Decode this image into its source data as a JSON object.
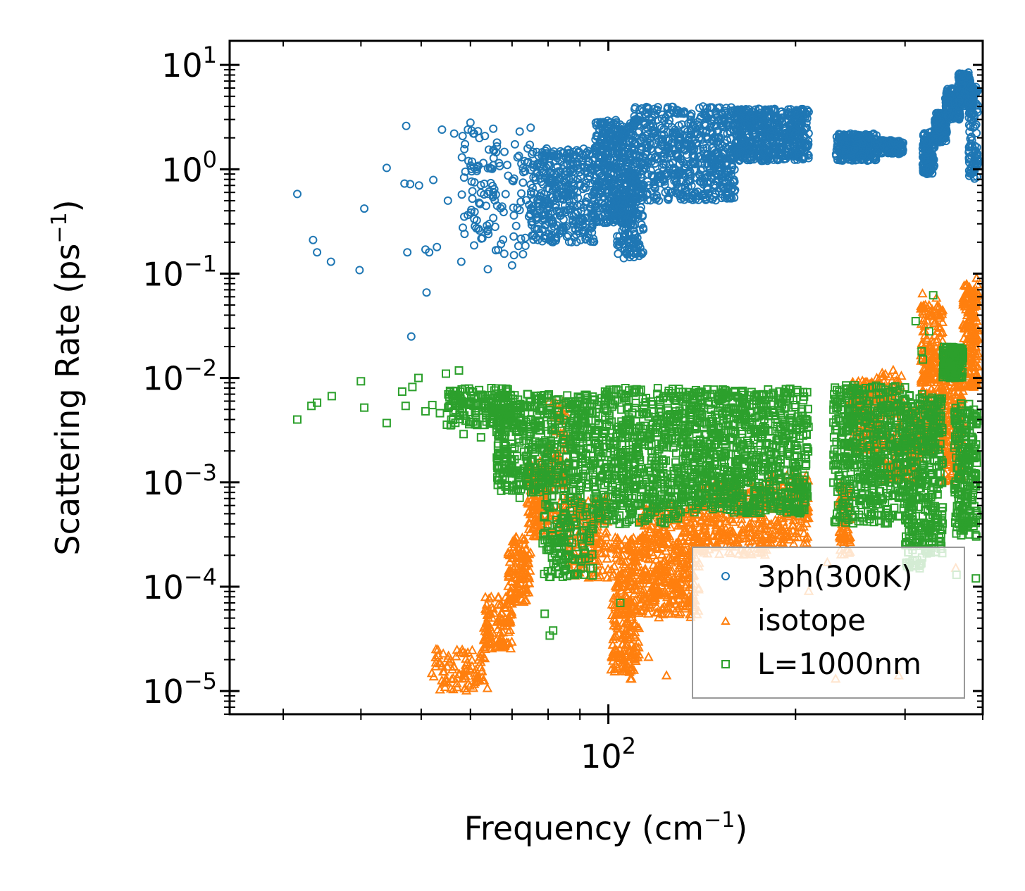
{
  "chart_data": {
    "type": "scatter",
    "title": "",
    "xlabel": "Frequency (cm",
    "xlabel_sup": "−1",
    "xlabel_end": ")",
    "ylabel": "Scattering Rate (ps",
    "ylabel_sup": "−1",
    "ylabel_end": ")",
    "xscale": "log",
    "yscale": "log",
    "xlim": [
      24.6,
      400
    ],
    "ylim": [
      6e-06,
      17
    ],
    "xticks": [
      {
        "value": 100,
        "base": "10",
        "exp": "2"
      }
    ],
    "yticks": [
      {
        "value": 1e-05,
        "base": "10",
        "exp": "−5"
      },
      {
        "value": 0.0001,
        "base": "10",
        "exp": "−4"
      },
      {
        "value": 0.001,
        "base": "10",
        "exp": "−3"
      },
      {
        "value": 0.01,
        "base": "10",
        "exp": "−2"
      },
      {
        "value": 0.1,
        "base": "10",
        "exp": "−1"
      },
      {
        "value": 1,
        "base": "10",
        "exp": "0"
      },
      {
        "value": 10,
        "base": "10",
        "exp": "1"
      }
    ],
    "legend_position": "lower-right",
    "series": [
      {
        "name": "3ph(300K)",
        "color": "#1f77b4",
        "marker": "circle",
        "points": [
          [
            31.6,
            0.58
          ],
          [
            33.5,
            0.21
          ],
          [
            34.0,
            0.16
          ],
          [
            35.8,
            0.13
          ],
          [
            39.8,
            0.108
          ],
          [
            40.5,
            0.42
          ],
          [
            44.0,
            1.03
          ],
          [
            47.0,
            0.73
          ],
          [
            47.3,
            2.6
          ],
          [
            47.5,
            0.16
          ],
          [
            48.0,
            0.72
          ],
          [
            48.2,
            0.025
          ],
          [
            49.6,
            0.7
          ],
          [
            50.8,
            0.17
          ],
          [
            51.0,
            0.066
          ],
          [
            51.5,
            0.16
          ],
          [
            52.3,
            0.79
          ],
          [
            53.0,
            0.18
          ],
          [
            54.0,
            2.4
          ],
          [
            55.2,
            0.5
          ],
          [
            56.5,
            2.2
          ],
          [
            58.0,
            0.13
          ],
          [
            60.0,
            2.8
          ],
          [
            62.0,
            0.47
          ],
          [
            64.0,
            0.11
          ],
          [
            65.3,
            1.53
          ],
          [
            68.0,
            0.155
          ],
          [
            70.0,
            0.12
          ],
          [
            72.0,
            2.3
          ],
          [
            75.0,
            2.5
          ]
        ],
        "dense_regions": [
          {
            "x": [
              58,
              75
            ],
            "y": [
              0.15,
              2.5
            ],
            "n": 130
          },
          {
            "x": [
              75,
              95
            ],
            "y": [
              0.2,
              1.6
            ],
            "n": 380
          },
          {
            "x": [
              95,
              110
            ],
            "y": [
              0.3,
              3.0
            ],
            "n": 420
          },
          {
            "x": [
              103,
              114
            ],
            "y": [
              0.14,
              1.0
            ],
            "n": 160
          },
          {
            "x": [
              110,
              160
            ],
            "y": [
              0.5,
              4.0
            ],
            "n": 650
          },
          {
            "x": [
              160,
              210
            ],
            "y": [
              1.2,
              3.8
            ],
            "n": 560
          },
          {
            "x": [
              232,
              270
            ],
            "y": [
              1.2,
              2.2
            ],
            "n": 260
          },
          {
            "x": [
              270,
              298
            ],
            "y": [
              1.4,
              1.9
            ],
            "n": 120
          },
          {
            "x": [
              320,
              335
            ],
            "y": [
              0.9,
              2.3
            ],
            "n": 140
          },
          {
            "x": [
              335,
              350
            ],
            "y": [
              1.8,
              3.5
            ],
            "n": 140
          },
          {
            "x": [
              348,
              368
            ],
            "y": [
              3.0,
              6.0
            ],
            "n": 140
          },
          {
            "x": [
              365,
              382
            ],
            "y": [
              4.0,
              8.5
            ],
            "n": 160
          },
          {
            "x": [
              380,
              393
            ],
            "y": [
              0.8,
              6.5
            ],
            "n": 110
          }
        ]
      },
      {
        "name": "isotope",
        "color": "#ff7f0e",
        "marker": "triangle",
        "points": [
          [
            76.5,
            0.0003
          ],
          [
            77.8,
            0.00065
          ],
          [
            94.0,
            0.00032
          ],
          [
            105.0,
            0.00025
          ],
          [
            105.5,
            3.2e-05
          ],
          [
            108.5,
            1.3e-05
          ],
          [
            109.0,
            1.3e-05
          ],
          [
            116.0,
            2.1e-05
          ],
          [
            124.0,
            1.4e-05
          ],
          [
            210.0,
            9e-05
          ],
          [
            225.0,
            0.00017
          ],
          [
            232.0,
            1.3e-05
          ],
          [
            238.0,
            0.00033
          ],
          [
            293.0,
            1.4e-05
          ],
          [
            320.0,
            0.064
          ],
          [
            337.0,
            0.058
          ],
          [
            362.0,
            0.00015
          ],
          [
            391.0,
            0.09
          ]
        ],
        "dense_regions": [
          {
            "x": [
              52,
              64
            ],
            "y": [
              1e-05,
              2.5e-05
            ],
            "n": 90
          },
          {
            "x": [
              63,
              70
            ],
            "y": [
              2.5e-05,
              8e-05
            ],
            "n": 120
          },
          {
            "x": [
              69,
              75
            ],
            "y": [
              7e-05,
              0.0003
            ],
            "n": 120
          },
          {
            "x": [
              74,
              80
            ],
            "y": [
              0.0003,
              0.0016
            ],
            "n": 120
          },
          {
            "x": [
              80,
              86
            ],
            "y": [
              0.0003,
              0.006
            ],
            "n": 90
          },
          {
            "x": [
              86,
              100
            ],
            "y": [
              0.00012,
              0.0007
            ],
            "n": 160
          },
          {
            "x": [
              101,
              112
            ],
            "y": [
              1.5e-05,
              0.0003
            ],
            "n": 260
          },
          {
            "x": [
              112,
              140
            ],
            "y": [
              5e-05,
              0.0006
            ],
            "n": 420
          },
          {
            "x": [
              140,
              180
            ],
            "y": [
              0.0002,
              0.001
            ],
            "n": 260
          },
          {
            "x": [
              180,
              210
            ],
            "y": [
              0.00025,
              0.0012
            ],
            "n": 140
          },
          {
            "x": [
              235,
              245
            ],
            "y": [
              0.0002,
              0.001
            ],
            "n": 70
          },
          {
            "x": [
              245,
              275
            ],
            "y": [
              0.002,
              0.01
            ],
            "n": 170
          },
          {
            "x": [
              275,
              298
            ],
            "y": [
              0.001,
              0.012
            ],
            "n": 110
          },
          {
            "x": [
              300,
              318
            ],
            "y": [
              0.001,
              0.005
            ],
            "n": 80
          },
          {
            "x": [
              318,
              345
            ],
            "y": [
              0.002,
              0.05
            ],
            "n": 260
          },
          {
            "x": [
              345,
              372
            ],
            "y": [
              0.001,
              0.01
            ],
            "n": 140
          },
          {
            "x": [
              372,
              393
            ],
            "y": [
              0.008,
              0.08
            ],
            "n": 200
          }
        ]
      },
      {
        "name": "L=1000nm",
        "color": "#2ca02c",
        "marker": "square",
        "points": [
          [
            31.6,
            0.004
          ],
          [
            33.3,
            0.0054
          ],
          [
            34.0,
            0.0058
          ],
          [
            35.9,
            0.0067
          ],
          [
            40.0,
            0.0093
          ],
          [
            40.5,
            0.0052
          ],
          [
            44.0,
            0.0037
          ],
          [
            46.6,
            0.0074
          ],
          [
            47.2,
            0.0054
          ],
          [
            48.4,
            0.0082
          ],
          [
            49.5,
            0.01
          ],
          [
            50.8,
            0.0048
          ],
          [
            52.1,
            0.0055
          ],
          [
            53.6,
            0.0046
          ],
          [
            54.8,
            0.011
          ],
          [
            55.5,
            0.0066
          ],
          [
            57.5,
            0.0118
          ],
          [
            58.5,
            0.0029
          ],
          [
            60.5,
            0.0073
          ],
          [
            62.4,
            0.0027
          ],
          [
            72.0,
            0.00071
          ],
          [
            79.0,
            5.5e-05
          ],
          [
            80.5,
            3.4e-05
          ],
          [
            81.5,
            3.8e-05
          ],
          [
            104.5,
            7e-05
          ],
          [
            291.0,
            0.0015
          ],
          [
            298.0,
            0.0029
          ],
          [
            312.0,
            0.035
          ],
          [
            315.0,
            0.00038
          ],
          [
            319.0,
            0.018
          ],
          [
            320.5,
            0.015
          ],
          [
            328.0,
            0.028
          ],
          [
            333.0,
            0.062
          ],
          [
            363.0,
            0.00013
          ],
          [
            375.0,
            0.0004
          ],
          [
            390.0,
            0.00012
          ],
          [
            391.0,
            0.0037
          ]
        ],
        "dense_regions": [
          {
            "x": [
              55,
              70
            ],
            "y": [
              0.0035,
              0.008
            ],
            "n": 160
          },
          {
            "x": [
              66,
              95
            ],
            "y": [
              0.0008,
              0.007
            ],
            "n": 520
          },
          {
            "x": [
              78,
              95
            ],
            "y": [
              0.00012,
              0.0008
            ],
            "n": 160
          },
          {
            "x": [
              95,
              130
            ],
            "y": [
              0.0004,
              0.008
            ],
            "n": 520
          },
          {
            "x": [
              130,
              210
            ],
            "y": [
              0.0005,
              0.008
            ],
            "n": 900
          },
          {
            "x": [
              230,
              300
            ],
            "y": [
              0.0004,
              0.0085
            ],
            "n": 520
          },
          {
            "x": [
              300,
              320
            ],
            "y": [
              0.00015,
              0.007
            ],
            "n": 200
          },
          {
            "x": [
              320,
              345
            ],
            "y": [
              0.0002,
              0.0065
            ],
            "n": 200
          },
          {
            "x": [
              345,
              372
            ],
            "y": [
              0.01,
              0.02
            ],
            "n": 180
          },
          {
            "x": [
              360,
              392
            ],
            "y": [
              0.0003,
              0.006
            ],
            "n": 220
          }
        ]
      }
    ]
  }
}
